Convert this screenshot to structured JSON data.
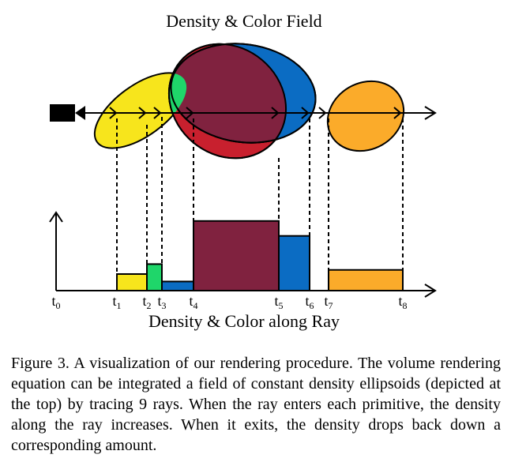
{
  "figure": {
    "top_title": "Density & Color Field",
    "bottom_title": "Density & Color along Ray",
    "tick_labels": [
      {
        "base": "t",
        "sub": "0"
      },
      {
        "base": "t",
        "sub": "1"
      },
      {
        "base": "t",
        "sub": "2"
      },
      {
        "base": "t",
        "sub": "3"
      },
      {
        "base": "t",
        "sub": "4"
      },
      {
        "base": "t",
        "sub": "5"
      },
      {
        "base": "t",
        "sub": "6"
      },
      {
        "base": "t",
        "sub": "7"
      },
      {
        "base": "t",
        "sub": "8"
      }
    ],
    "segments": [
      {
        "from": "t1",
        "to": "t2",
        "level": 1.0,
        "color": "#f7e51c"
      },
      {
        "from": "t2",
        "to": "t3",
        "level": 1.6,
        "color": "#1fd66a"
      },
      {
        "from": "t3",
        "to": "t4",
        "level": 0.55,
        "color": "#0b6cc3"
      },
      {
        "from": "t4",
        "to": "t5",
        "level": 4.2,
        "color": "#80223f"
      },
      {
        "from": "t5",
        "to": "t6",
        "level": 3.3,
        "color": "#0b6cc3"
      },
      {
        "from": "t7",
        "to": "t8",
        "level": 1.25,
        "color": "#fbab2a"
      }
    ],
    "ellipse_colors": {
      "yellow": "#f7e51c",
      "green": "#1fd66a",
      "red": "#c8202e",
      "blue": "#0b6cc3",
      "maroon": "#80223f",
      "orange": "#fbab2a"
    },
    "icons": [
      "camera-icon"
    ]
  },
  "caption": {
    "text": "Figure 3. A visualization of our rendering procedure. The volume rendering equation can be integrated a field of constant density ellipsoids (depicted at the top) by tracing 9 rays.  When the ray enters each primitive, the density along the ray increases. When it exits, the density drops back down a corresponding amount."
  }
}
